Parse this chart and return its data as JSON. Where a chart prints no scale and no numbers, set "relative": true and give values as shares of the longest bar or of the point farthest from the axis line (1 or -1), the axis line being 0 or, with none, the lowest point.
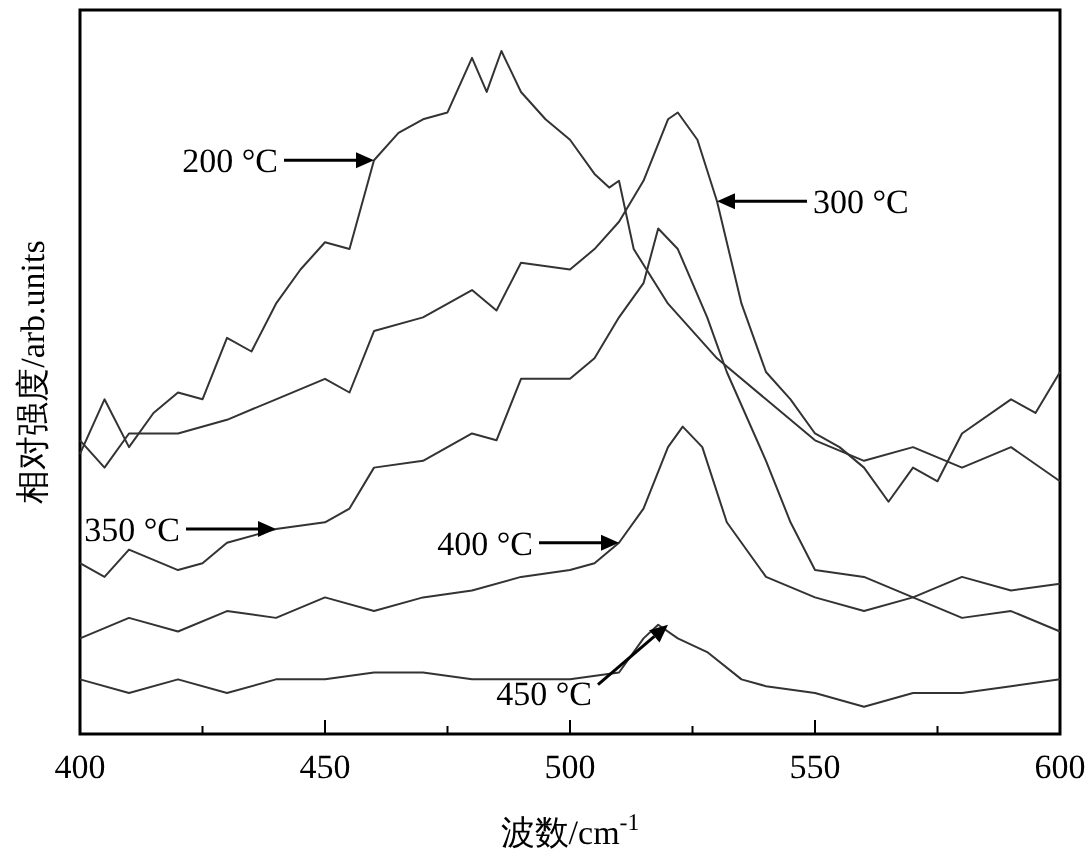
{
  "chart_data": {
    "type": "line",
    "relative": true,
    "xlabel": "波数/cm$^{-1}$",
    "ylabel": "相对强度/arb.units",
    "xlim": [
      400,
      600
    ],
    "xticks": [
      400,
      {
        "value": 425,
        "label": null
      },
      450,
      {
        "value": 475,
        "label": null
      },
      500,
      {
        "value": 525,
        "label": null
      },
      550,
      {
        "value": 575,
        "label": null
      },
      600
    ],
    "line_style": "solid",
    "series": [
      {
        "color": "#333333",
        "x": [
          400,
          405,
          410,
          415,
          420,
          425,
          430,
          435,
          440,
          445,
          450,
          455,
          460,
          465,
          470,
          475,
          480,
          483,
          486,
          490,
          495,
          500,
          505,
          508,
          510,
          513,
          520,
          530,
          540,
          550,
          560,
          570,
          580,
          590,
          600
        ],
        "values": [
          0.41,
          0.49,
          0.42,
          0.47,
          0.5,
          0.49,
          0.58,
          0.56,
          0.63,
          0.68,
          0.72,
          0.71,
          0.84,
          0.88,
          0.9,
          0.91,
          0.99,
          0.94,
          1.0,
          0.94,
          0.9,
          0.87,
          0.82,
          0.8,
          0.81,
          0.71,
          0.63,
          0.55,
          0.49,
          0.43,
          0.4,
          0.42,
          0.39,
          0.42,
          0.37
        ]
      },
      {
        "color": "#333333",
        "x": [
          400,
          405,
          410,
          420,
          430,
          440,
          450,
          455,
          460,
          470,
          480,
          485,
          490,
          500,
          505,
          510,
          515,
          520,
          522,
          526,
          530,
          535,
          540,
          545,
          550,
          555,
          560,
          565,
          570,
          575,
          580,
          590,
          595,
          600
        ],
        "values": [
          0.43,
          0.39,
          0.44,
          0.44,
          0.46,
          0.49,
          0.52,
          0.5,
          0.59,
          0.61,
          0.65,
          0.62,
          0.69,
          0.68,
          0.71,
          0.75,
          0.81,
          0.9,
          0.91,
          0.87,
          0.78,
          0.63,
          0.53,
          0.49,
          0.44,
          0.42,
          0.39,
          0.34,
          0.39,
          0.37,
          0.44,
          0.49,
          0.47,
          0.53
        ]
      },
      {
        "color": "#333333",
        "x": [
          400,
          405,
          410,
          420,
          425,
          430,
          440,
          450,
          455,
          460,
          470,
          480,
          485,
          490,
          500,
          505,
          510,
          515,
          518,
          522,
          528,
          532,
          540,
          545,
          550,
          560,
          570,
          580,
          590,
          600
        ],
        "values": [
          0.25,
          0.23,
          0.27,
          0.24,
          0.25,
          0.28,
          0.3,
          0.31,
          0.33,
          0.39,
          0.4,
          0.44,
          0.43,
          0.52,
          0.52,
          0.55,
          0.61,
          0.66,
          0.74,
          0.71,
          0.61,
          0.53,
          0.4,
          0.31,
          0.24,
          0.23,
          0.2,
          0.23,
          0.21,
          0.22
        ]
      },
      {
        "color": "#333333",
        "x": [
          400,
          410,
          420,
          430,
          440,
          450,
          460,
          470,
          480,
          490,
          500,
          505,
          510,
          515,
          520,
          523,
          527,
          532,
          540,
          550,
          560,
          570,
          580,
          590,
          600
        ],
        "values": [
          0.14,
          0.17,
          0.15,
          0.18,
          0.17,
          0.2,
          0.18,
          0.2,
          0.21,
          0.23,
          0.24,
          0.25,
          0.28,
          0.33,
          0.42,
          0.45,
          0.42,
          0.31,
          0.23,
          0.2,
          0.18,
          0.2,
          0.17,
          0.18,
          0.15
        ]
      },
      {
        "color": "#333333",
        "x": [
          400,
          410,
          420,
          430,
          440,
          450,
          460,
          470,
          480,
          490,
          500,
          510,
          515,
          518,
          522,
          528,
          535,
          540,
          550,
          560,
          570,
          580,
          590,
          600
        ],
        "values": [
          0.08,
          0.06,
          0.08,
          0.06,
          0.08,
          0.08,
          0.09,
          0.09,
          0.08,
          0.08,
          0.08,
          0.09,
          0.14,
          0.16,
          0.14,
          0.12,
          0.08,
          0.07,
          0.06,
          0.04,
          0.06,
          0.06,
          0.07,
          0.08
        ]
      }
    ],
    "annotations": [
      {
        "text": "200 °C",
        "x": 460,
        "y": 0.84
      },
      {
        "text": "300 °C",
        "x": 530,
        "y": 0.78
      },
      {
        "text": "350 °C",
        "x": 440,
        "y": 0.3
      },
      {
        "text": "400 °C",
        "x": 510,
        "y": 0.28
      },
      {
        "text": "450 °C",
        "x": 520,
        "y": 0.16
      }
    ]
  }
}
